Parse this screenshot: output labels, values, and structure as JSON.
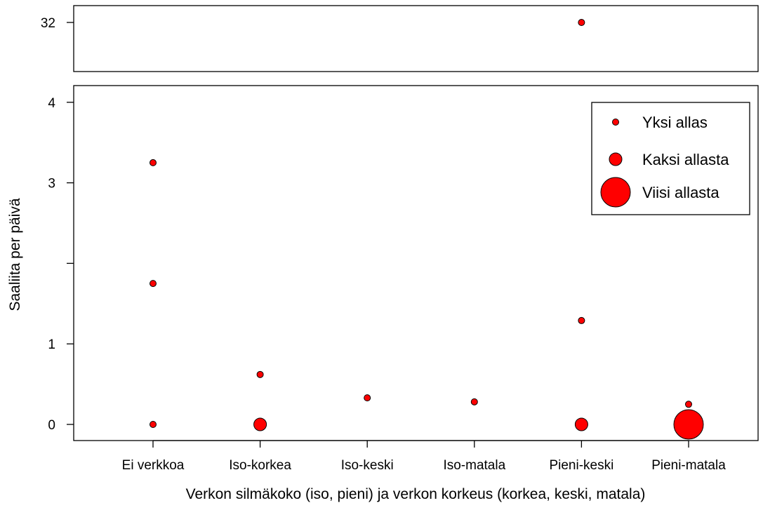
{
  "chart_data": {
    "type": "scatter",
    "xlabel": "Verkon silmäkoko (iso, pieni) ja verkon korkeus (korkea, keski, matala)",
    "ylabel": "Saaliita per päivä",
    "categories": [
      "Ei verkkoa",
      "Iso-korkea",
      "Iso-keski",
      "Iso-matala",
      "Pieni-keski",
      "Pieni-matala"
    ],
    "y_axis_lower": {
      "range": [
        -0.2,
        4.2
      ],
      "ticks": [
        0,
        1,
        2,
        3,
        4
      ],
      "tick_labels": [
        "0",
        "1",
        "",
        "3",
        "4"
      ]
    },
    "y_axis_upper": {
      "ticks": [
        32
      ],
      "tick_labels": [
        "32"
      ]
    },
    "legend": {
      "position": "top-right",
      "entries": [
        {
          "label": "Yksi allas",
          "pools": 1
        },
        {
          "label": "Kaksi allasta",
          "pools": 2
        },
        {
          "label": "Viisi allasta",
          "pools": 5
        }
      ]
    },
    "marker_color": "#ff0000",
    "marker_edge_color": "#000000",
    "points": [
      {
        "category": "Ei verkkoa",
        "y": 3.25,
        "pools": 1
      },
      {
        "category": "Ei verkkoa",
        "y": 1.75,
        "pools": 1
      },
      {
        "category": "Ei verkkoa",
        "y": 0,
        "pools": 1
      },
      {
        "category": "Iso-korkea",
        "y": 0.62,
        "pools": 1
      },
      {
        "category": "Iso-korkea",
        "y": 0,
        "pools": 2
      },
      {
        "category": "Iso-keski",
        "y": 0.33,
        "pools": 1
      },
      {
        "category": "Iso-matala",
        "y": 0.28,
        "pools": 1
      },
      {
        "category": "Pieni-keski",
        "y": 32,
        "pools": 1
      },
      {
        "category": "Pieni-keski",
        "y": 1.29,
        "pools": 1
      },
      {
        "category": "Pieni-keski",
        "y": 0,
        "pools": 2
      },
      {
        "category": "Pieni-matala",
        "y": 0.25,
        "pools": 1
      },
      {
        "category": "Pieni-matala",
        "y": 0,
        "pools": 5
      }
    ]
  }
}
